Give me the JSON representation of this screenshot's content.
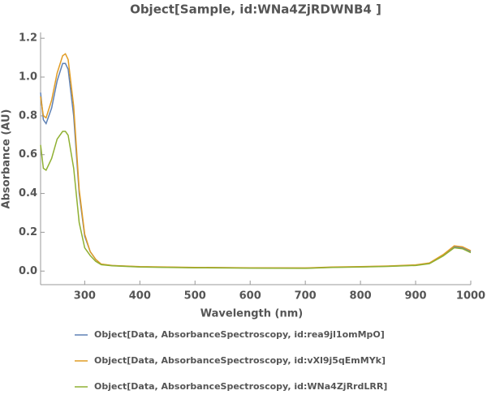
{
  "chart_data": {
    "type": "line",
    "title": "Object[Sample, id:WNa4ZjRDWNB4 ]",
    "x_label": "Wavelength  (nm)",
    "y_label": "Absorbance  (AU)",
    "x": [
      220,
      225,
      230,
      240,
      250,
      260,
      265,
      270,
      280,
      290,
      300,
      310,
      320,
      330,
      350,
      400,
      500,
      600,
      700,
      750,
      800,
      850,
      900,
      925,
      950,
      970,
      985,
      1000
    ],
    "series": [
      {
        "name": "Object[Data, AbsorbanceSpectroscopy, id:rea9jl1omMpO]",
        "color": "#5e81b5",
        "values": [
          0.92,
          0.78,
          0.76,
          0.84,
          0.98,
          1.07,
          1.07,
          1.04,
          0.8,
          0.4,
          0.18,
          0.1,
          0.06,
          0.035,
          0.028,
          0.022,
          0.018,
          0.016,
          0.015,
          0.02,
          0.022,
          0.025,
          0.03,
          0.04,
          0.08,
          0.125,
          0.12,
          0.1
        ]
      },
      {
        "name": "Object[Data, AbsorbanceSpectroscopy, id:vXl9j5qEmMYk]",
        "color": "#e19c24",
        "values": [
          0.9,
          0.8,
          0.79,
          0.88,
          1.02,
          1.11,
          1.12,
          1.09,
          0.85,
          0.42,
          0.19,
          0.1,
          0.06,
          0.036,
          0.029,
          0.023,
          0.019,
          0.017,
          0.016,
          0.021,
          0.023,
          0.026,
          0.032,
          0.042,
          0.085,
          0.13,
          0.125,
          0.105
        ]
      },
      {
        "name": "Object[Data, AbsorbanceSpectroscopy, id:WNa4ZjRrdLRR]",
        "color": "#8fb032",
        "values": [
          0.65,
          0.53,
          0.52,
          0.58,
          0.68,
          0.72,
          0.72,
          0.7,
          0.53,
          0.25,
          0.12,
          0.08,
          0.05,
          0.033,
          0.027,
          0.021,
          0.017,
          0.015,
          0.014,
          0.019,
          0.021,
          0.024,
          0.029,
          0.038,
          0.078,
          0.12,
          0.115,
          0.095
        ]
      }
    ],
    "xlim": [
      220,
      1000
    ],
    "ylim": [
      -0.07,
      1.23
    ],
    "xticks": [
      300,
      400,
      500,
      600,
      700,
      800,
      900,
      1000
    ],
    "yticks": [
      {
        "value": 0,
        "label": "0.0"
      },
      0.2,
      0.4,
      0.6,
      0.8,
      {
        "value": 1,
        "label": "1.0"
      },
      1.2
    ],
    "grid": false
  }
}
